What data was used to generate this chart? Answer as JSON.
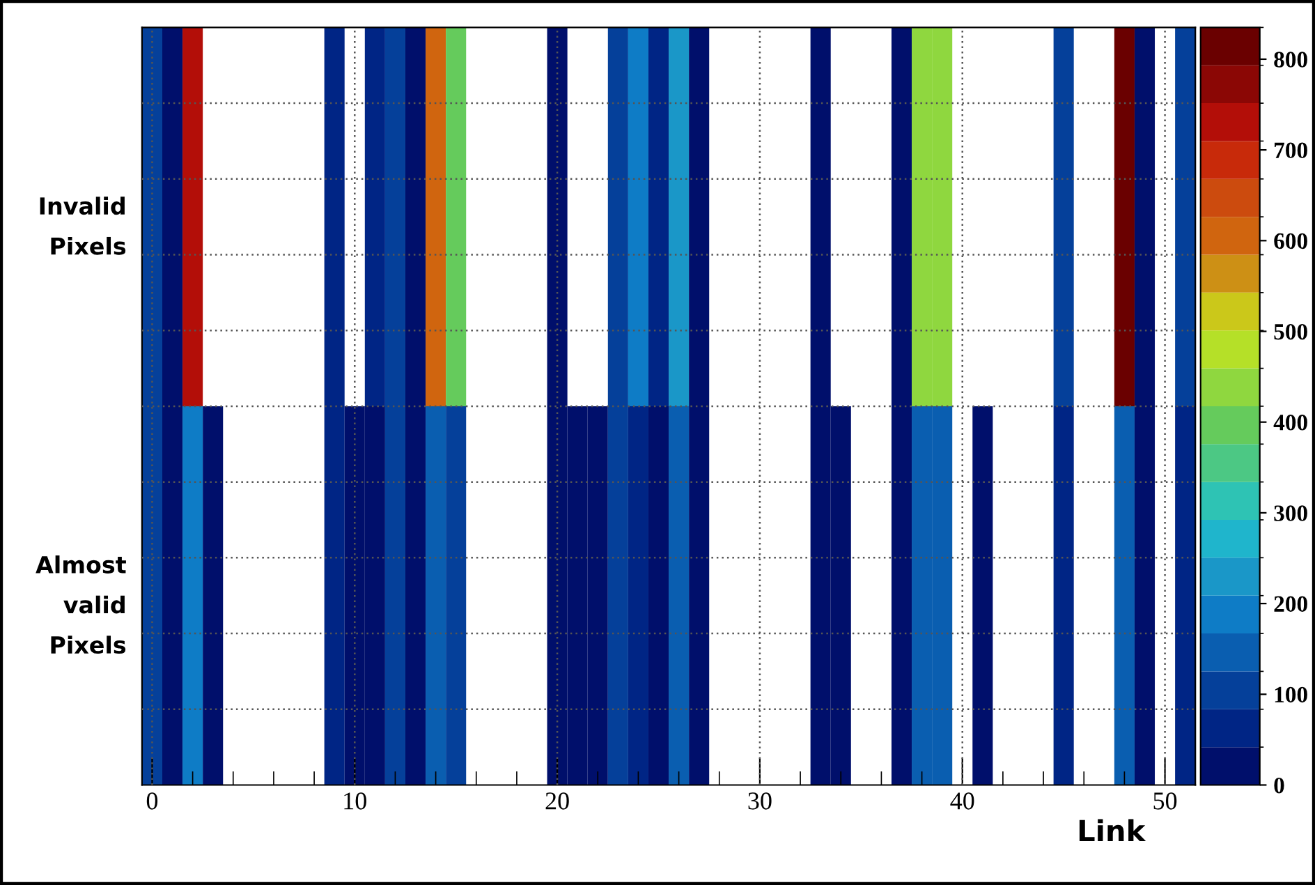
{
  "chart_data": {
    "type": "heatmap",
    "xlabel": "Link",
    "x": [
      0,
      1,
      2,
      3,
      4,
      5,
      6,
      7,
      8,
      9,
      10,
      11,
      12,
      13,
      14,
      15,
      16,
      17,
      18,
      19,
      20,
      21,
      22,
      23,
      24,
      25,
      26,
      27,
      28,
      29,
      30,
      31,
      32,
      33,
      34,
      35,
      36,
      37,
      38,
      39,
      40,
      41,
      42,
      43,
      44,
      45,
      46,
      47,
      48,
      49,
      50,
      51
    ],
    "xlim": [
      -0.5,
      51.5
    ],
    "xticks": [
      0,
      10,
      20,
      30,
      40,
      50
    ],
    "y_categories": [
      "Invalid Pixels",
      "Almost valid Pixels"
    ],
    "cells": [
      [
        100,
        20,
        730,
        null,
        null,
        null,
        null,
        null,
        null,
        60,
        null,
        60,
        100,
        20,
        605,
        395,
        null,
        null,
        null,
        null,
        20,
        null,
        null,
        100,
        190,
        60,
        230,
        20,
        null,
        null,
        null,
        null,
        null,
        20,
        null,
        null,
        null,
        20,
        440,
        440,
        null,
        null,
        null,
        null,
        null,
        100,
        null,
        null,
        810,
        20,
        null,
        100
      ],
      [
        100,
        20,
        190,
        20,
        null,
        null,
        null,
        null,
        null,
        60,
        20,
        20,
        100,
        20,
        145,
        100,
        null,
        null,
        null,
        null,
        20,
        20,
        20,
        100,
        60,
        20,
        145,
        20,
        null,
        null,
        null,
        null,
        null,
        20,
        20,
        null,
        null,
        20,
        145,
        145,
        null,
        20,
        null,
        null,
        null,
        60,
        null,
        null,
        145,
        20,
        null,
        60
      ]
    ],
    "clim": [
      0,
      835
    ],
    "cticks": [
      0,
      100,
      200,
      300,
      400,
      500,
      600,
      700,
      800
    ],
    "grid": true
  }
}
